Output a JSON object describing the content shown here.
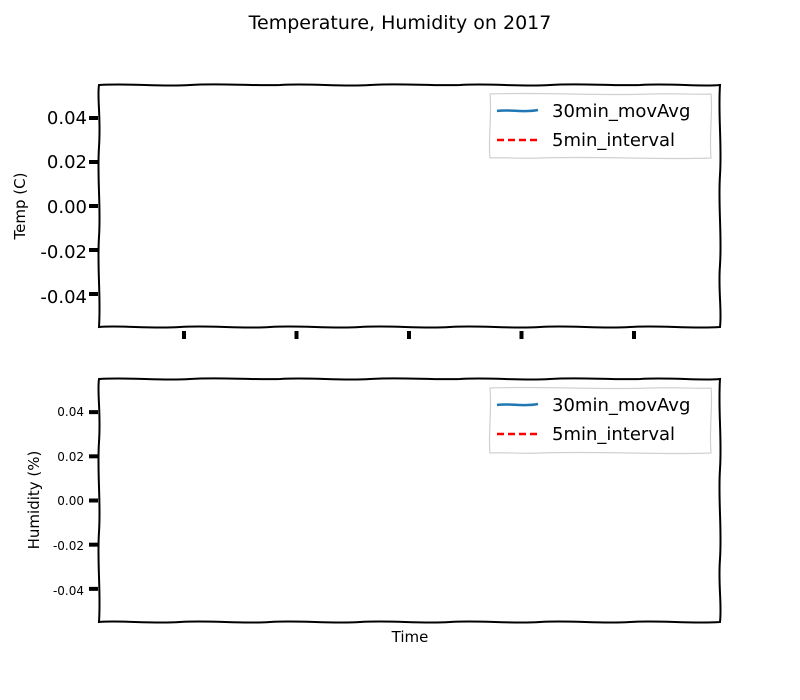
{
  "figure": {
    "title": "Temperature, Humidity on 2017"
  },
  "chart_data": [
    {
      "type": "line",
      "title": "",
      "xlabel": "",
      "ylabel": "Temp (C)",
      "ylim": [
        -0.055,
        0.055
      ],
      "yticks": [
        "0.04",
        "0.02",
        "0.00",
        "-0.02",
        "-0.04"
      ],
      "ytick_values": [
        0.04,
        0.02,
        0.0,
        -0.02,
        -0.04
      ],
      "xtick_count": 5,
      "grid": false,
      "legend_position": "top-right",
      "series": [
        {
          "name": "30min_movAvg",
          "style": "solid",
          "color": "#1f77b4",
          "values": []
        },
        {
          "name": "5min_interval",
          "style": "dashed",
          "color": "#ff0000",
          "values": []
        }
      ]
    },
    {
      "type": "line",
      "title": "",
      "xlabel": "Time",
      "ylabel": "Humidity (%)",
      "ylim": [
        -0.055,
        0.055
      ],
      "yticks": [
        "0.04",
        "0.02",
        "0.00",
        "-0.02",
        "-0.04"
      ],
      "ytick_values": [
        0.04,
        0.02,
        0.0,
        -0.02,
        -0.04
      ],
      "xtick_count": 0,
      "grid": false,
      "legend_position": "top-right",
      "series": [
        {
          "name": "30min_movAvg",
          "style": "solid",
          "color": "#1f77b4",
          "values": []
        },
        {
          "name": "5min_interval",
          "style": "dashed",
          "color": "#ff0000",
          "values": []
        }
      ]
    }
  ]
}
